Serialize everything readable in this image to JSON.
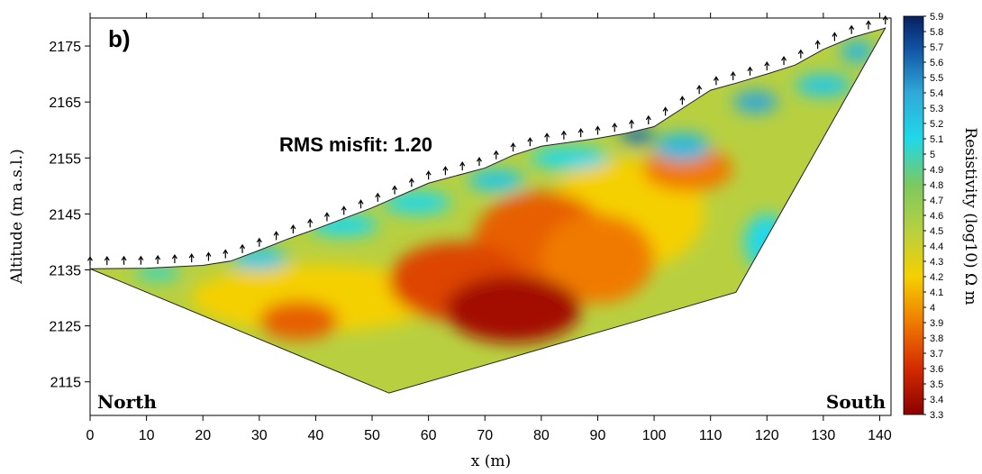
{
  "chart_data": {
    "type": "contour",
    "title": "b)",
    "annotation": "RMS misfit: 1.20",
    "left_label": "North",
    "right_label": "South",
    "xlabel": "x (m)",
    "ylabel": "Altitude (m a.s.l.)",
    "xlim": [
      0,
      142
    ],
    "xticks": [
      0,
      10,
      20,
      30,
      40,
      50,
      60,
      70,
      80,
      90,
      100,
      110,
      120,
      130,
      140
    ],
    "ylim": [
      2109,
      2180
    ],
    "yticks": [
      2115,
      2125,
      2135,
      2145,
      2155,
      2165,
      2175
    ],
    "surface": {
      "x": [
        0,
        10,
        20,
        25,
        30,
        35,
        40,
        50,
        60,
        70,
        75,
        80,
        90,
        95,
        100,
        110,
        115,
        120,
        125,
        130,
        135,
        141
      ],
      "y": [
        2135.2,
        2135.3,
        2135.8,
        2136.6,
        2138.5,
        2140.5,
        2142.3,
        2146.1,
        2150.5,
        2153.2,
        2155.5,
        2157.1,
        2158.5,
        2159.4,
        2160.6,
        2167.1,
        2168.5,
        2170,
        2171.6,
        2174.4,
        2176.5,
        2178.2
      ]
    },
    "bottom": {
      "x": [
        0,
        53,
        114.5,
        141
      ],
      "y": [
        2135.2,
        2113,
        2131,
        2178.2
      ]
    },
    "electrodes_x": [
      0,
      3,
      6,
      9,
      12,
      15,
      18,
      21,
      24,
      27,
      30,
      33,
      36,
      39,
      42,
      45,
      48,
      51,
      54,
      57,
      60,
      63,
      66,
      69,
      72,
      75,
      78,
      81,
      84,
      87,
      90,
      93,
      96,
      99,
      102,
      105,
      108,
      111,
      114,
      117,
      120,
      123,
      126,
      129,
      132,
      135,
      138,
      141
    ],
    "background_value": 4.5,
    "anomalies": [
      {
        "x": 40,
        "y": 2130,
        "value": 4.2,
        "rx": 22,
        "ry": 6
      },
      {
        "x": 95,
        "y": 2145,
        "value": 4.2,
        "rx": 14,
        "ry": 10
      },
      {
        "x": 80,
        "y": 2140,
        "value": 3.8,
        "rx": 12,
        "ry": 9
      },
      {
        "x": 90,
        "y": 2137,
        "value": 3.9,
        "rx": 10,
        "ry": 8
      },
      {
        "x": 65,
        "y": 2133,
        "value": 3.7,
        "rx": 12,
        "ry": 7
      },
      {
        "x": 75,
        "y": 2128,
        "value": 3.4,
        "rx": 12,
        "ry": 6
      },
      {
        "x": 37,
        "y": 2126,
        "value": 3.8,
        "rx": 7,
        "ry": 3.5
      },
      {
        "x": 106,
        "y": 2153,
        "value": 3.9,
        "rx": 8,
        "ry": 4
      },
      {
        "x": 12,
        "y": 2134.5,
        "value": 5.0,
        "rx": 4,
        "ry": 1.5
      },
      {
        "x": 30,
        "y": 2137,
        "value": 5.2,
        "rx": 5,
        "ry": 2
      },
      {
        "x": 45,
        "y": 2143,
        "value": 5.1,
        "rx": 6,
        "ry": 2
      },
      {
        "x": 58,
        "y": 2147,
        "value": 5.1,
        "rx": 6,
        "ry": 2
      },
      {
        "x": 72,
        "y": 2151,
        "value": 5.2,
        "rx": 5,
        "ry": 2
      },
      {
        "x": 85,
        "y": 2155,
        "value": 5.1,
        "rx": 7,
        "ry": 2
      },
      {
        "x": 105,
        "y": 2157,
        "value": 5.3,
        "rx": 5,
        "ry": 2.5
      },
      {
        "x": 97,
        "y": 2159,
        "value": 5.6,
        "rx": 3,
        "ry": 1.5
      },
      {
        "x": 118,
        "y": 2165,
        "value": 5.4,
        "rx": 4,
        "ry": 2
      },
      {
        "x": 130,
        "y": 2168,
        "value": 5.2,
        "rx": 5,
        "ry": 2
      },
      {
        "x": 136,
        "y": 2174,
        "value": 5.3,
        "rx": 3,
        "ry": 2
      },
      {
        "x": 120,
        "y": 2140,
        "value": 5.1,
        "rx": 4,
        "ry": 5
      }
    ],
    "colorbar": {
      "label": "Resistivity (log10) Ω m",
      "lim": [
        3.3,
        5.9
      ],
      "ticks": [
        3.3,
        3.4,
        3.5,
        3.6,
        3.7,
        3.8,
        3.9,
        4,
        4.1,
        4.2,
        4.3,
        4.4,
        4.5,
        4.6,
        4.7,
        4.8,
        4.9,
        5,
        5.1,
        5.2,
        5.3,
        5.4,
        5.5,
        5.6,
        5.7,
        5.8,
        5.9
      ],
      "colormap": [
        [
          3.3,
          "#8b0000"
        ],
        [
          3.6,
          "#d42a00"
        ],
        [
          3.9,
          "#f07a00"
        ],
        [
          4.2,
          "#f5d000"
        ],
        [
          4.5,
          "#b8d040"
        ],
        [
          4.8,
          "#7cc860"
        ],
        [
          5.1,
          "#20d8e8"
        ],
        [
          5.4,
          "#30a8d8"
        ],
        [
          5.7,
          "#1050a0"
        ],
        [
          5.9,
          "#082060"
        ]
      ]
    }
  }
}
